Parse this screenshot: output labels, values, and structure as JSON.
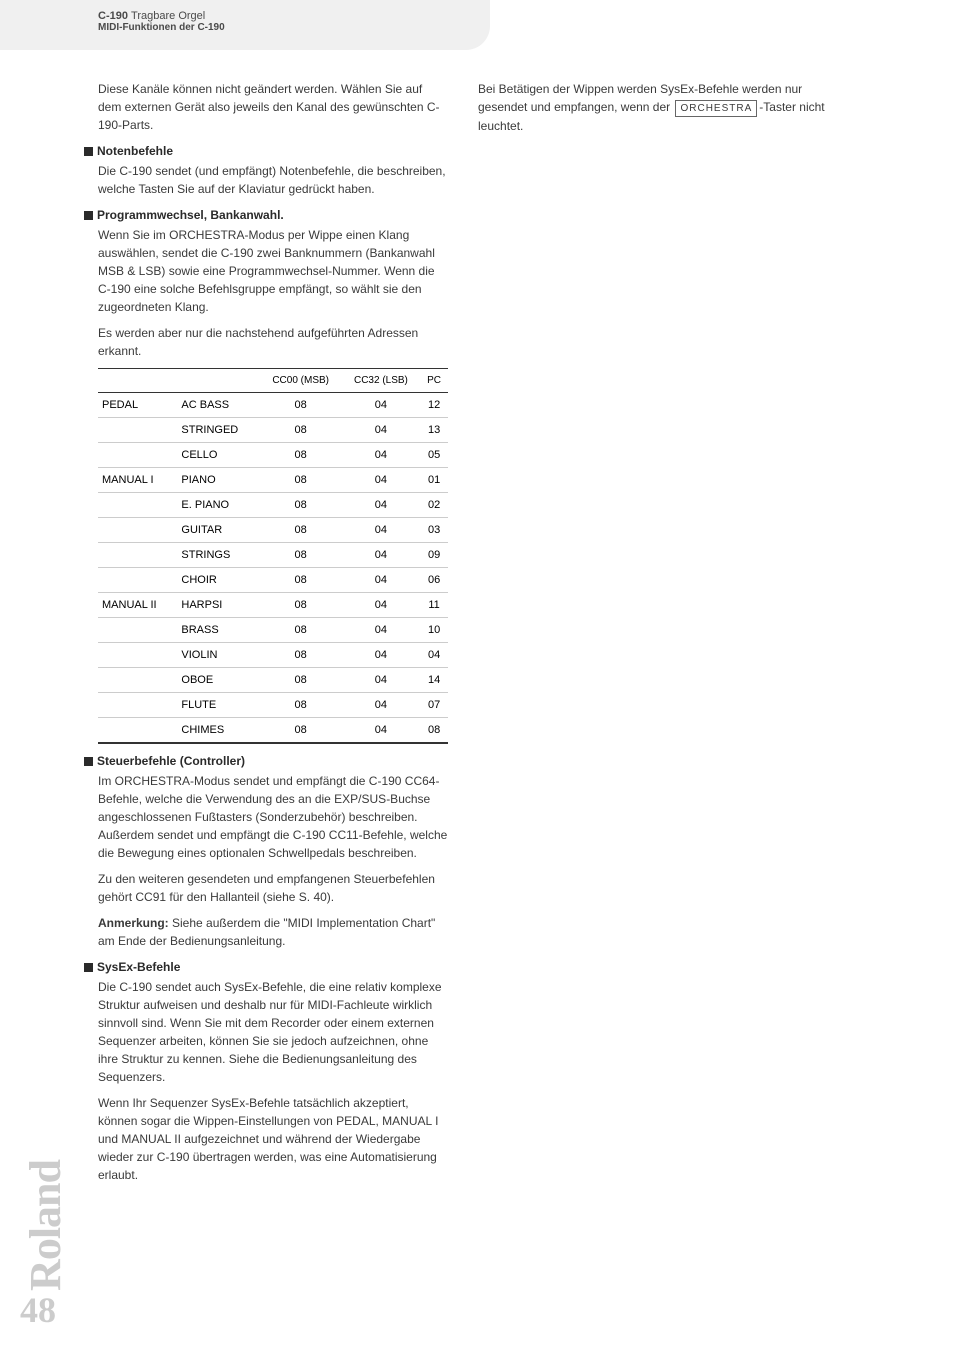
{
  "header": {
    "title_bold": "C-190",
    "title_light": "Tragbare Orgel",
    "subtitle": "MIDI-Funktionen der C-190"
  },
  "intro_text": "Diese Kanäle können nicht geändert werden. Wählen Sie auf dem externen Gerät also jeweils den Kanal des gewünschten C-190-Parts.",
  "sections": {
    "notenbefehle": {
      "heading": "Notenbefehle",
      "text": "Die C-190 sendet (und empfängt) Notenbefehle, die beschreiben, welche Tasten Sie auf der Klaviatur gedrückt haben."
    },
    "programmwechsel": {
      "heading": "Programmwechsel, Bankanwahl.",
      "text1": "Wenn Sie im ORCHESTRA-Modus per Wippe einen Klang auswählen, sendet die C-190 zwei Banknummern (Bankanwahl MSB & LSB) sowie eine Programmwechsel-Nummer. Wenn die C-190 eine solche Befehlsgruppe empfängt, so wählt sie den zugeordneten Klang.",
      "text2": "Es werden aber nur die nachstehend aufgeführten Adressen erkannt."
    },
    "steuerbefehle": {
      "heading": "Steuerbefehle (Controller)",
      "text1": "Im ORCHESTRA-Modus sendet und empfängt die C-190 CC64-Befehle, welche die Verwendung des an die EXP/SUS-Buchse angeschlossenen Fußtasters (Sonderzubehör) beschreiben. Außerdem sendet und empfängt die C-190 CC11-Befehle, welche die Bewegung eines optionalen Schwellpedals beschreiben.",
      "text2": "Zu den weiteren gesendeten und empfangenen Steuerbefehlen gehört CC91 für den Hallanteil (siehe S. 40).",
      "note_label": "Anmerkung:",
      "note_text": " Siehe außerdem die \"MIDI Implementation Chart\" am Ende der Bedienungsanleitung."
    },
    "sysex": {
      "heading": "SysEx-Befehle",
      "text1": "Die C-190 sendet auch SysEx-Befehle, die eine relativ komplexe Struktur aufweisen und deshalb nur für MIDI-Fachleute wirklich sinnvoll sind. Wenn Sie mit dem Recorder oder einem externen Sequenzer arbeiten, können Sie sie jedoch aufzeichnen, ohne ihre Struktur zu kennen. Siehe die Bedienungsanleitung des Sequenzers.",
      "text2": "Wenn Ihr Sequenzer SysEx-Befehle tatsächlich akzeptiert, können sogar die Wippen-Einstellungen von PEDAL, MANUAL I und MANUAL II aufgezeichnet und während der Wiedergabe wieder zur C-190 übertragen werden, was eine Automatisierung erlaubt."
    }
  },
  "right_column": {
    "text_before": "Bei Betätigen der Wippen werden SysEx-Befehle werden nur gesendet und empfangen, wenn der ",
    "keycap": "ORCHESTRA",
    "text_after": "-Taster nicht leuchtet."
  },
  "table": {
    "headers": [
      "",
      "",
      "CC00 (MSB)",
      "CC32 (LSB)",
      "PC"
    ],
    "rows": [
      {
        "part": "PEDAL",
        "instrument": "AC BASS",
        "cc00": "08",
        "cc32": "04",
        "pc": "12",
        "section": true
      },
      {
        "part": "",
        "instrument": "STRINGED",
        "cc00": "08",
        "cc32": "04",
        "pc": "13"
      },
      {
        "part": "",
        "instrument": "CELLO",
        "cc00": "08",
        "cc32": "04",
        "pc": "05"
      },
      {
        "part": "MANUAL I",
        "instrument": "PIANO",
        "cc00": "08",
        "cc32": "04",
        "pc": "01",
        "section": true
      },
      {
        "part": "",
        "instrument": "E. PIANO",
        "cc00": "08",
        "cc32": "04",
        "pc": "02"
      },
      {
        "part": "",
        "instrument": "GUITAR",
        "cc00": "08",
        "cc32": "04",
        "pc": "03"
      },
      {
        "part": "",
        "instrument": "STRINGS",
        "cc00": "08",
        "cc32": "04",
        "pc": "09"
      },
      {
        "part": "",
        "instrument": "CHOIR",
        "cc00": "08",
        "cc32": "04",
        "pc": "06"
      },
      {
        "part": "MANUAL II",
        "instrument": "HARPSI",
        "cc00": "08",
        "cc32": "04",
        "pc": "11",
        "section": true
      },
      {
        "part": "",
        "instrument": "BRASS",
        "cc00": "08",
        "cc32": "04",
        "pc": "10"
      },
      {
        "part": "",
        "instrument": "VIOLIN",
        "cc00": "08",
        "cc32": "04",
        "pc": "04"
      },
      {
        "part": "",
        "instrument": "OBOE",
        "cc00": "08",
        "cc32": "04",
        "pc": "14"
      },
      {
        "part": "",
        "instrument": "FLUTE",
        "cc00": "08",
        "cc32": "04",
        "pc": "07"
      },
      {
        "part": "",
        "instrument": "CHIMES",
        "cc00": "08",
        "cc32": "04",
        "pc": "08",
        "last": true
      }
    ]
  },
  "logo": "Roland",
  "page_number": "48"
}
